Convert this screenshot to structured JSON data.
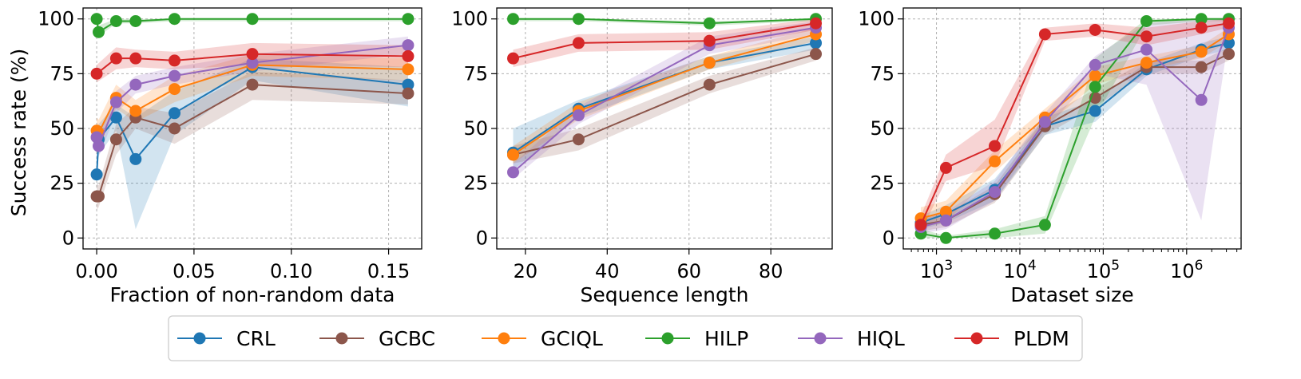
{
  "shared_ylabel": "Success rate (%)",
  "legend": [
    {
      "name": "CRL",
      "color": "#1f77b4"
    },
    {
      "name": "GCBC",
      "color": "#8c564b"
    },
    {
      "name": "GCIQL",
      "color": "#ff7f0e"
    },
    {
      "name": "HILP",
      "color": "#2ca02c"
    },
    {
      "name": "HIQL",
      "color": "#9467bd"
    },
    {
      "name": "PLDM",
      "color": "#d62728"
    }
  ],
  "chart_data": [
    {
      "type": "line",
      "xlabel": "Fraction of non-random data",
      "ylabel": "Success rate (%)",
      "xscale": "linear",
      "xlim": [
        -0.007,
        0.167
      ],
      "ylim": [
        -5,
        105
      ],
      "xticks": [
        0.0,
        0.05,
        0.1,
        0.15
      ],
      "xtick_labels": [
        "0.00",
        "0.05",
        "0.10",
        "0.15"
      ],
      "yticks": [
        0,
        25,
        50,
        75,
        100
      ],
      "ytick_labels": [
        "0",
        "25",
        "50",
        "75",
        "100"
      ],
      "grid": true,
      "series": [
        {
          "name": "CRL",
          "x": [
            0.0,
            0.001,
            0.01,
            0.02,
            0.04,
            0.08,
            0.16
          ],
          "y": [
            29,
            45,
            55,
            36,
            57,
            78,
            70
          ],
          "band": [
            [
              22,
              36
            ],
            [
              38,
              52
            ],
            [
              49,
              61
            ],
            [
              4,
              55
            ],
            [
              47,
              67
            ],
            [
              72,
              82
            ],
            [
              60,
              78
            ]
          ]
        },
        {
          "name": "GCBC",
          "x": [
            0.0,
            0.001,
            0.01,
            0.02,
            0.04,
            0.08,
            0.16
          ],
          "y": [
            19,
            19,
            45,
            55,
            50,
            70,
            66
          ],
          "band": [
            [
              13,
              25
            ],
            [
              14,
              24
            ],
            [
              38,
              52
            ],
            [
              50,
              60
            ],
            [
              43,
              57
            ],
            [
              63,
              76
            ],
            [
              61,
              72
            ]
          ]
        },
        {
          "name": "GCIQL",
          "x": [
            0.0,
            0.001,
            0.01,
            0.02,
            0.04,
            0.08,
            0.16
          ],
          "y": [
            49,
            48,
            64,
            58,
            68,
            79,
            77
          ],
          "band": [
            [
              43,
              55
            ],
            [
              42,
              54
            ],
            [
              59,
              70
            ],
            [
              53,
              63
            ],
            [
              62,
              74
            ],
            [
              74,
              84
            ],
            [
              72,
              82
            ]
          ]
        },
        {
          "name": "HILP",
          "x": [
            0.0,
            0.001,
            0.01,
            0.02,
            0.04,
            0.08,
            0.16
          ],
          "y": [
            100,
            94,
            99,
            99,
            100,
            100,
            100
          ],
          "band": [
            [
              99,
              100
            ],
            [
              92,
              97
            ],
            [
              98,
              100
            ],
            [
              98,
              100
            ],
            [
              99,
              100
            ],
            [
              99,
              100
            ],
            [
              99,
              100
            ]
          ]
        },
        {
          "name": "HIQL",
          "x": [
            0.0,
            0.001,
            0.01,
            0.02,
            0.04,
            0.08,
            0.16
          ],
          "y": [
            46,
            42,
            62,
            70,
            74,
            80,
            88
          ],
          "band": [
            [
              40,
              52
            ],
            [
              37,
              47
            ],
            [
              57,
              67
            ],
            [
              66,
              74
            ],
            [
              70,
              78
            ],
            [
              76,
              84
            ],
            [
              84,
              92
            ]
          ]
        },
        {
          "name": "PLDM",
          "x": [
            0.0,
            0.01,
            0.02,
            0.04,
            0.08,
            0.16
          ],
          "y": [
            75,
            82,
            82,
            81,
            84,
            83
          ],
          "band": [
            [
              71,
              79
            ],
            [
              77,
              87
            ],
            [
              78,
              86
            ],
            [
              77,
              85
            ],
            [
              79,
              89
            ],
            [
              78,
              88
            ]
          ]
        }
      ]
    },
    {
      "type": "line",
      "xlabel": "Sequence length",
      "ylabel": "",
      "xscale": "linear",
      "xlim": [
        13,
        95
      ],
      "ylim": [
        -5,
        105
      ],
      "xticks": [
        20,
        40,
        60,
        80
      ],
      "xtick_labels": [
        "20",
        "40",
        "60",
        "80"
      ],
      "yticks": [
        0,
        25,
        50,
        75,
        100
      ],
      "ytick_labels": [
        "0",
        "25",
        "50",
        "75",
        "100"
      ],
      "grid": true,
      "series": [
        {
          "name": "CRL",
          "x": [
            17,
            33,
            65,
            91
          ],
          "y": [
            39,
            59,
            80,
            89
          ],
          "band": [
            [
              31,
              50
            ],
            [
              55,
              63
            ],
            [
              77,
              83
            ],
            [
              86,
              92
            ]
          ]
        },
        {
          "name": "GCBC",
          "x": [
            17,
            33,
            65,
            91
          ],
          "y": [
            38,
            45,
            70,
            84
          ],
          "band": [
            [
              34,
              42
            ],
            [
              40,
              50
            ],
            [
              66,
              74
            ],
            [
              81,
              87
            ]
          ]
        },
        {
          "name": "GCIQL",
          "x": [
            17,
            33,
            65,
            91
          ],
          "y": [
            38,
            58,
            80,
            93
          ],
          "band": [
            [
              34,
              42
            ],
            [
              54,
              62
            ],
            [
              77,
              83
            ],
            [
              90,
              96
            ]
          ]
        },
        {
          "name": "HILP",
          "x": [
            17,
            33,
            65,
            91
          ],
          "y": [
            100,
            100,
            98,
            100
          ],
          "band": [
            [
              99,
              100
            ],
            [
              99,
              100
            ],
            [
              97,
              99
            ],
            [
              99,
              100
            ]
          ]
        },
        {
          "name": "HIQL",
          "x": [
            17,
            33,
            65,
            91
          ],
          "y": [
            30,
            56,
            88,
            96
          ],
          "band": [
            [
              27,
              34
            ],
            [
              52,
              60
            ],
            [
              84,
              92
            ],
            [
              93,
              99
            ]
          ]
        },
        {
          "name": "PLDM",
          "x": [
            17,
            33,
            65,
            91
          ],
          "y": [
            82,
            89,
            90,
            98
          ],
          "band": [
            [
              78,
              86
            ],
            [
              85,
              93
            ],
            [
              86,
              94
            ],
            [
              95,
              100
            ]
          ]
        }
      ]
    },
    {
      "type": "line",
      "xlabel": "Dataset size",
      "ylabel": "",
      "xscale": "log",
      "xlim": [
        400,
        4500000
      ],
      "ylim": [
        -5,
        105
      ],
      "xticks": [
        1000,
        10000,
        100000,
        1000000
      ],
      "xtick_labels": [
        "10^3",
        "10^4",
        "10^5",
        "10^6"
      ],
      "yticks": [
        0,
        25,
        50,
        75,
        100
      ],
      "ytick_labels": [
        "0",
        "25",
        "50",
        "75",
        "100"
      ],
      "grid": true,
      "series": [
        {
          "name": "CRL",
          "x": [
            650,
            1300,
            5000,
            20000,
            80000,
            330000,
            1500000,
            3200000
          ],
          "y": [
            7,
            11,
            22,
            51,
            58,
            77,
            86,
            89
          ],
          "band": [
            [
              4,
              10
            ],
            [
              7,
              15
            ],
            [
              17,
              27
            ],
            [
              47,
              55
            ],
            [
              53,
              63
            ],
            [
              74,
              80
            ],
            [
              83,
              89
            ],
            [
              86,
              92
            ]
          ]
        },
        {
          "name": "GCBC",
          "x": [
            650,
            1300,
            5000,
            20000,
            80000,
            330000,
            1500000,
            3200000
          ],
          "y": [
            6,
            8,
            20,
            51,
            64,
            78,
            78,
            84
          ],
          "band": [
            [
              3,
              9
            ],
            [
              5,
              11
            ],
            [
              16,
              24
            ],
            [
              47,
              55
            ],
            [
              60,
              68
            ],
            [
              75,
              81
            ],
            [
              75,
              81
            ],
            [
              81,
              87
            ]
          ]
        },
        {
          "name": "GCIQL",
          "x": [
            650,
            1300,
            5000,
            20000,
            80000,
            330000,
            1500000,
            3200000
          ],
          "y": [
            9,
            12,
            35,
            55,
            74,
            80,
            85,
            93
          ],
          "band": [
            [
              5,
              14
            ],
            [
              7,
              17
            ],
            [
              30,
              40
            ],
            [
              51,
              59
            ],
            [
              70,
              78
            ],
            [
              77,
              83
            ],
            [
              82,
              88
            ],
            [
              90,
              96
            ]
          ]
        },
        {
          "name": "HILP",
          "x": [
            650,
            1300,
            5000,
            20000,
            80000,
            330000,
            1500000,
            3200000
          ],
          "y": [
            2,
            0,
            2,
            6,
            69,
            99,
            100,
            100
          ],
          "band": [
            [
              0,
              4
            ],
            [
              0,
              1
            ],
            [
              0,
              4
            ],
            [
              2,
              10
            ],
            [
              55,
              82
            ],
            [
              97,
              100
            ],
            [
              99,
              100
            ],
            [
              99,
              100
            ]
          ]
        },
        {
          "name": "HIQL",
          "x": [
            650,
            1300,
            5000,
            20000,
            80000,
            330000,
            1500000,
            3200000
          ],
          "y": [
            5,
            8,
            21,
            53,
            79,
            86,
            63,
            96
          ],
          "band": [
            [
              2,
              8
            ],
            [
              4,
              12
            ],
            [
              17,
              26
            ],
            [
              49,
              57
            ],
            [
              75,
              83
            ],
            [
              70,
              98
            ],
            [
              8,
              100
            ],
            [
              92,
              100
            ]
          ]
        },
        {
          "name": "PLDM",
          "x": [
            650,
            1300,
            5000,
            20000,
            80000,
            330000,
            1500000,
            3200000
          ],
          "y": [
            6,
            32,
            42,
            93,
            95,
            92,
            96,
            98
          ],
          "band": [
            [
              3,
              10
            ],
            [
              26,
              38
            ],
            [
              33,
              54
            ],
            [
              90,
              96
            ],
            [
              92,
              98
            ],
            [
              88,
              96
            ],
            [
              93,
              99
            ],
            [
              96,
              100
            ]
          ]
        }
      ]
    }
  ]
}
